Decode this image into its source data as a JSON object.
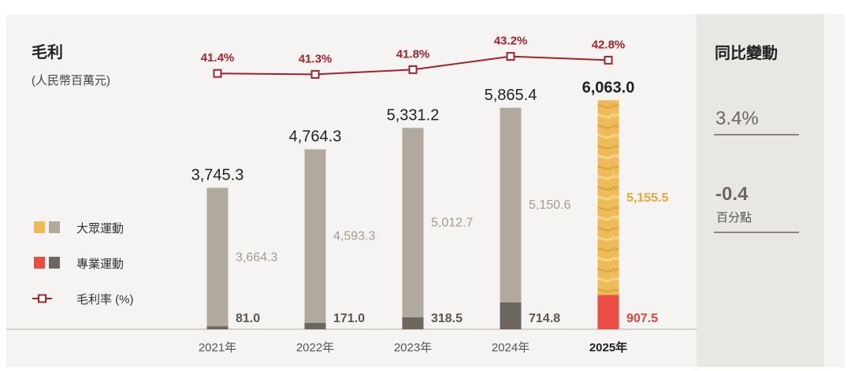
{
  "title": "毛利",
  "unit": "(人民幣百萬元)",
  "colors": {
    "mass_grey": "#b1a99e",
    "mass_gold": "#eebb58",
    "pro_grey": "#6c665f",
    "pro_red": "#ea4d44",
    "line": "#a3232b"
  },
  "legend": {
    "mass": "大眾運動",
    "professional": "專業運動",
    "margin": "毛利率 (%)"
  },
  "side": {
    "title": "同比變動",
    "change_1": "3.4%",
    "change_2": "-0.4",
    "change_2_unit": "百分點"
  },
  "chart_data": {
    "type": "stacked-bar-with-line",
    "title": "毛利",
    "ylabel": "(人民幣百萬元)",
    "categories": [
      "2021年",
      "2022年",
      "2023年",
      "2024年",
      "2025年"
    ],
    "totals": [
      "3,745.3",
      "4,764.3",
      "5,331.2",
      "5,865.4",
      "6,063.0"
    ],
    "series": [
      {
        "name": "專業運動",
        "values": [
          81.0,
          171.0,
          318.5,
          714.8,
          907.5
        ],
        "labels": [
          "81.0",
          "171.0",
          "318.5",
          "714.8",
          "907.5"
        ]
      },
      {
        "name": "大眾運動",
        "values": [
          3664.3,
          4593.3,
          5012.7,
          5150.6,
          5155.5
        ],
        "labels": [
          "3,664.3",
          "4,593.3",
          "5,012.7",
          "5,150.6",
          "5,155.5"
        ]
      }
    ],
    "line": {
      "name": "毛利率 (%)",
      "values": [
        41.4,
        41.3,
        41.8,
        43.2,
        42.8
      ],
      "labels": [
        "41.4%",
        "41.3%",
        "41.8%",
        "43.2%",
        "42.8%"
      ]
    },
    "highlight_index": 4
  }
}
